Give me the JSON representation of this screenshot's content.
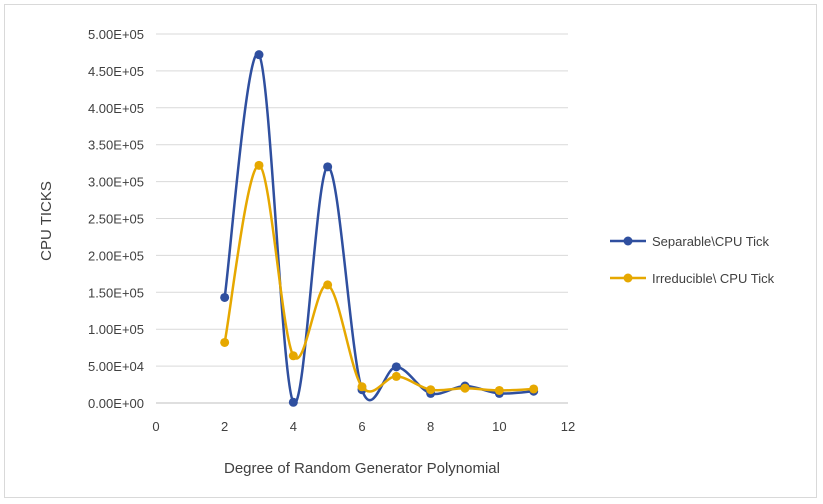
{
  "chart_data": {
    "type": "line",
    "title": "",
    "xlabel": "Degree  of Random Generator Polynomial",
    "ylabel": "CPU TICKS",
    "xlim": [
      0,
      12
    ],
    "ylim": [
      0,
      500000
    ],
    "x_ticks": [
      "0",
      "2",
      "4",
      "6",
      "8",
      "10",
      "12"
    ],
    "y_ticks": [
      "0.00E+00",
      "5.00E+04",
      "1.00E+05",
      "1.50E+05",
      "2.00E+05",
      "2.50E+05",
      "3.00E+05",
      "3.50E+05",
      "4.00E+05",
      "4.50E+05",
      "5.00E+05"
    ],
    "grid": true,
    "smooth": true,
    "legend_position": "right",
    "series": [
      {
        "name": "Separable\\CPU Tick",
        "color": "#2f4f9f",
        "x": [
          2,
          3,
          4,
          5,
          6,
          7,
          8,
          9,
          10,
          11
        ],
        "y": [
          143000,
          472000,
          1000,
          320000,
          18000,
          49000,
          13000,
          23000,
          13000,
          16000
        ]
      },
      {
        "name": "Irreducible\\ CPU Tick",
        "color": "#e6a800",
        "x": [
          2,
          3,
          4,
          5,
          6,
          7,
          8,
          9,
          10,
          11
        ],
        "y": [
          82000,
          322000,
          64000,
          160000,
          22000,
          36000,
          18000,
          20000,
          17000,
          19000
        ]
      }
    ]
  }
}
